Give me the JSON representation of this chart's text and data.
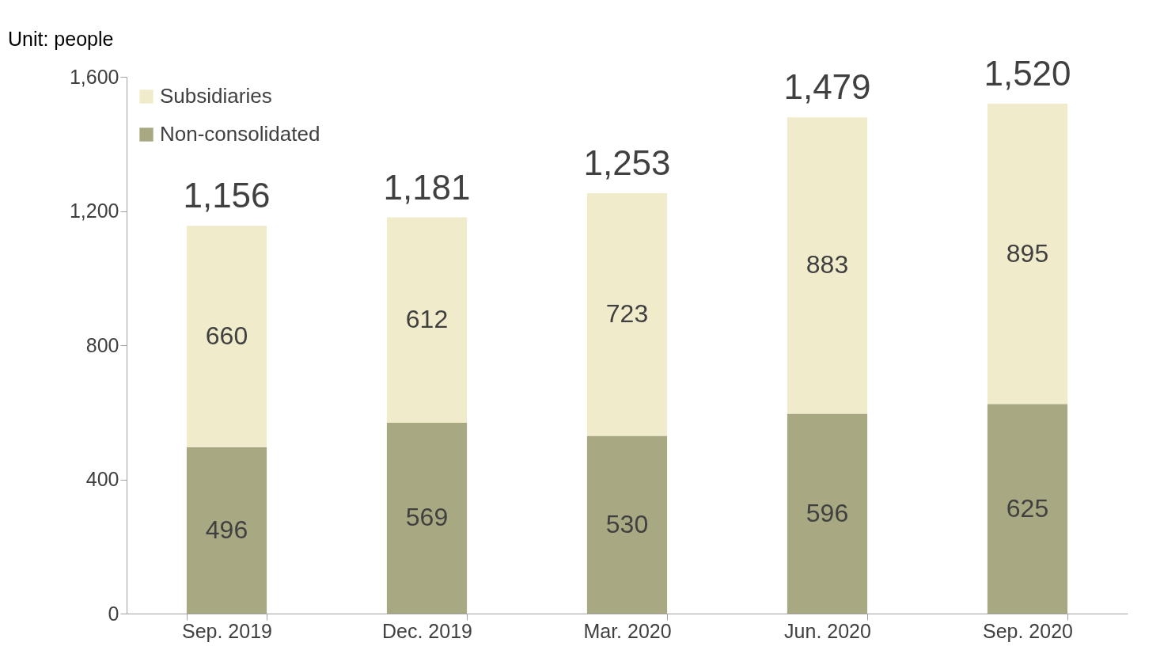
{
  "chart_data": {
    "type": "bar",
    "stacked": true,
    "categories": [
      "Sep. 2019",
      "Dec. 2019",
      "Mar. 2020",
      "Jun. 2020",
      "Sep. 2020"
    ],
    "series": [
      {
        "name": "Non-consolidated",
        "color": "#a8a883",
        "values": [
          496,
          569,
          530,
          596,
          625
        ]
      },
      {
        "name": "Subsidiaries",
        "color": "#f0ebcb",
        "values": [
          660,
          612,
          723,
          883,
          895
        ]
      }
    ],
    "data_labels": true,
    "totals": [
      "1,156",
      "1,181",
      "1,253",
      "1,479",
      "1,520"
    ],
    "ylim": [
      0,
      1600
    ],
    "yticks": [
      0,
      400,
      800,
      {
        "value": 1200,
        "label": "1,200"
      },
      {
        "value": 1600,
        "label": "1,600"
      }
    ],
    "grid": false,
    "legend": "top left",
    "annotations": [
      "Unit: people"
    ]
  }
}
